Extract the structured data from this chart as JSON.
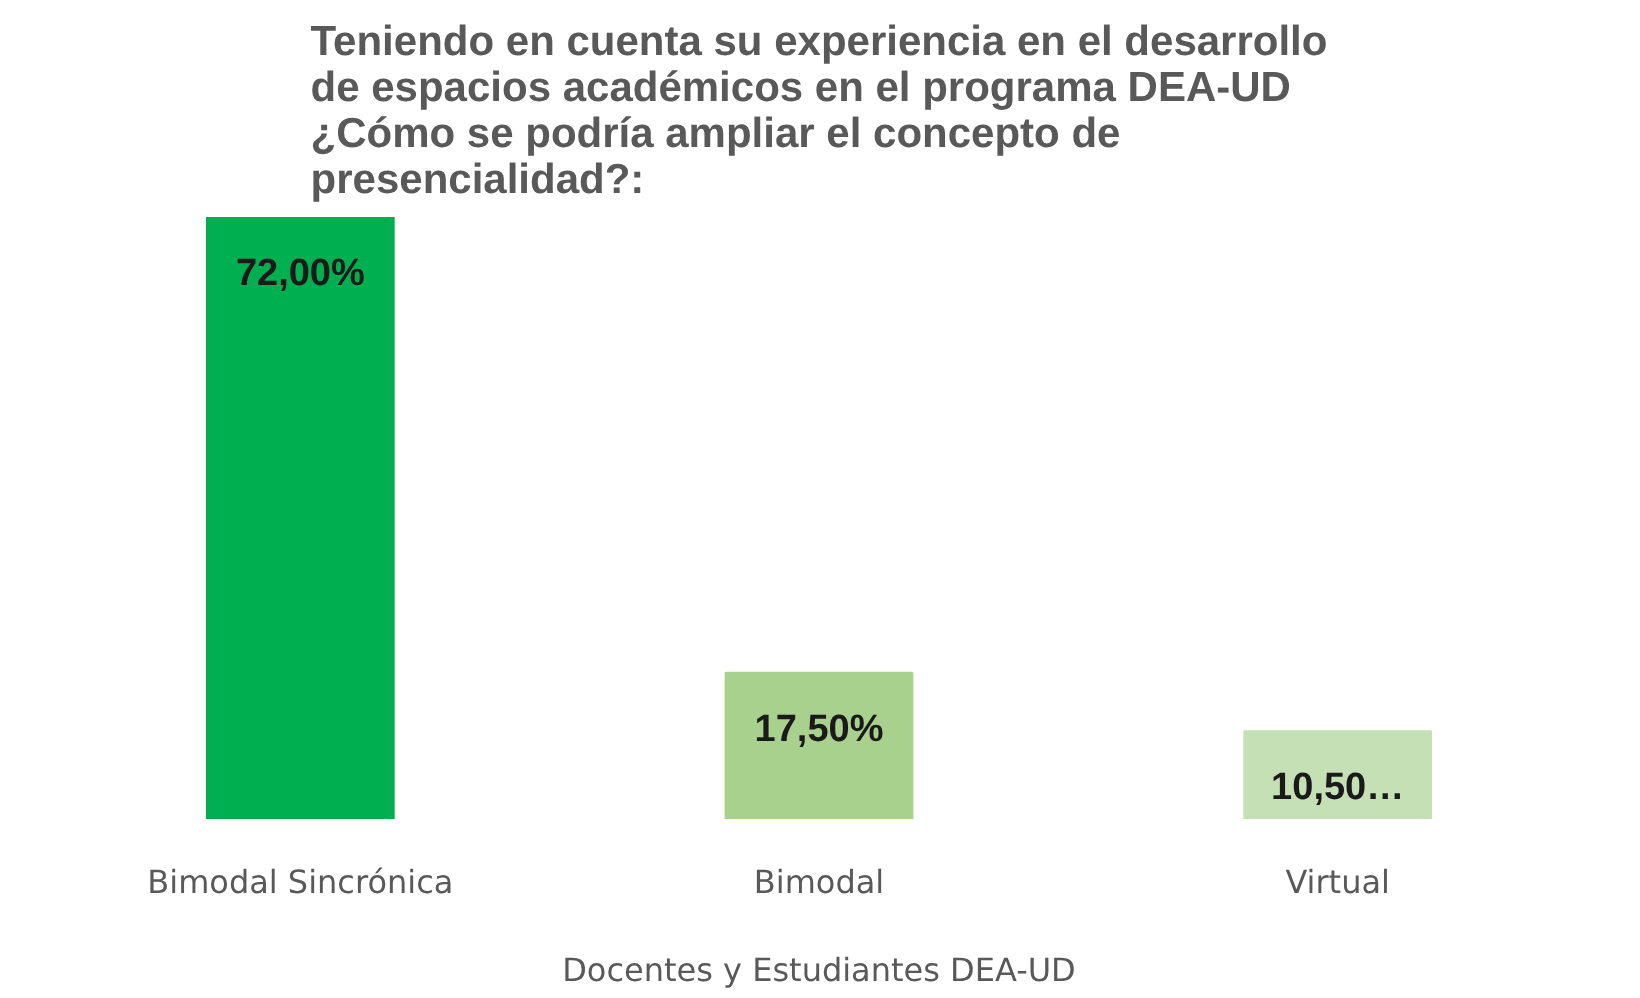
{
  "chart_data": {
    "type": "bar",
    "title": "Teniendo en cuenta su experiencia en el desarrollo\nde espacios académicos en el programa DEA-UD\n¿Cómo se podría ampliar el concepto de\npresencialidad?:",
    "xlabel": "Docentes y Estudiantes DEA-UD",
    "categories": [
      "Bimodal Sincrónica",
      "Bimodal",
      "Virtual"
    ],
    "values": [
      72,
      17.5,
      10.5
    ],
    "colors": [
      "#00b050",
      "#a9d18e",
      "#c5e0b4"
    ],
    "value_labels": [
      "72,00%",
      "17,50%",
      "10,50…"
    ],
    "grid": false
  }
}
